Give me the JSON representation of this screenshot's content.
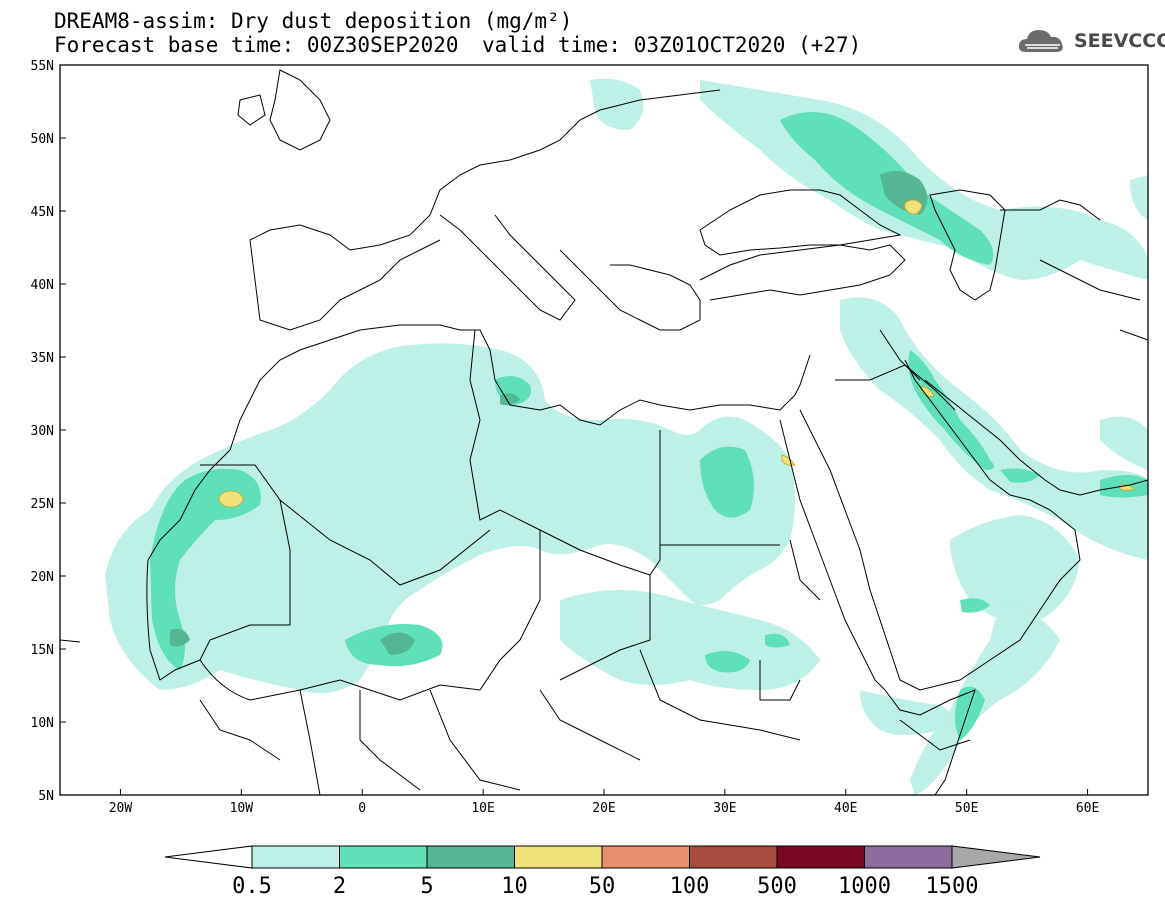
{
  "header": {
    "title_line1": "DREAM8-assim: Dry dust deposition (mg/m²)",
    "title_line2": "Forecast base time: 00Z30SEP2020",
    "valid_time": "valid time: 03Z01OCT2020 (+27)",
    "logo_text": "SEEVCCC"
  },
  "map": {
    "lat_labels": [
      "55N",
      "50N",
      "45N",
      "40N",
      "35N",
      "30N",
      "25N",
      "20N",
      "15N",
      "10N",
      "5N"
    ],
    "lat_values": [
      55,
      50,
      45,
      40,
      35,
      30,
      25,
      20,
      15,
      10,
      5
    ],
    "lon_labels": [
      "20W",
      "10W",
      "0",
      "10E",
      "20E",
      "30E",
      "40E",
      "50E",
      "60E"
    ],
    "lon_values": [
      -20,
      -10,
      0,
      10,
      20,
      30,
      40,
      50,
      60
    ],
    "extent": {
      "lon_min": -25,
      "lon_max": 65,
      "lat_min": 5,
      "lat_max": 55
    }
  },
  "colorbar": {
    "labels": [
      "0.5",
      "2",
      "5",
      "10",
      "50",
      "100",
      "500",
      "1000",
      "1500"
    ],
    "colors": [
      "#bdf0e6",
      "#5fe0b8",
      "#54b692",
      "#f0e27a",
      "#e88e6a",
      "#a84a3c",
      "#7a0a24",
      "#8e6c9e",
      "#a8a8a8"
    ]
  }
}
